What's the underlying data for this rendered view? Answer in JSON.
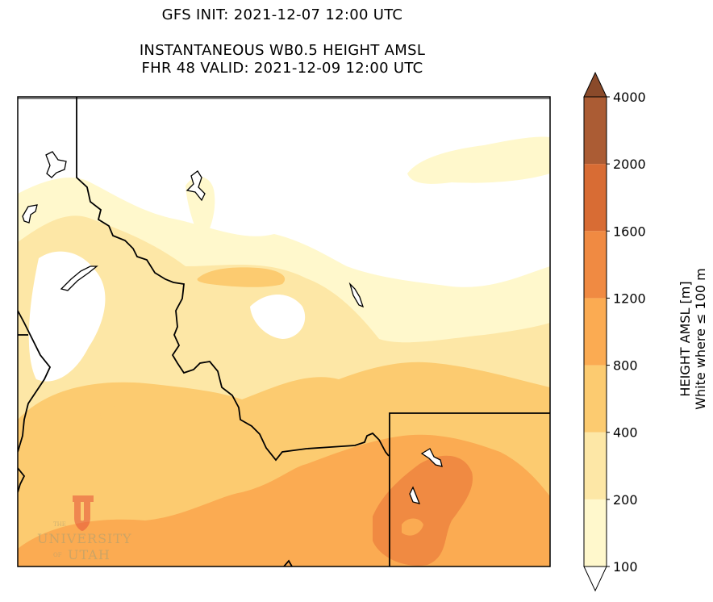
{
  "title": {
    "line1": "GFS INIT: 2021-12-07 12:00 UTC",
    "line2": "INSTANTANEOUS WB0.5 HEIGHT AMSL",
    "line3": "FHR 48 VALID: 2021-12-09 12:00 UTC"
  },
  "colorbar": {
    "label_line1": "HEIGHT AMSL [m]",
    "label_line2": "White where ≤ 100 m",
    "levels": [
      "100",
      "200",
      "400",
      "800",
      "1200",
      "1600",
      "2000",
      "4000"
    ],
    "colors": [
      "#fff8cc",
      "#fde7a6",
      "#fccb70",
      "#fbab52",
      "#f08a42",
      "#d86c34",
      "#ab5c34",
      "#8a4a2a"
    ]
  },
  "logo": {
    "the": "THE",
    "university": "UNIVERSITY",
    "of": "OF",
    "utah": "UTAH",
    "color": "#e85a3c"
  }
}
